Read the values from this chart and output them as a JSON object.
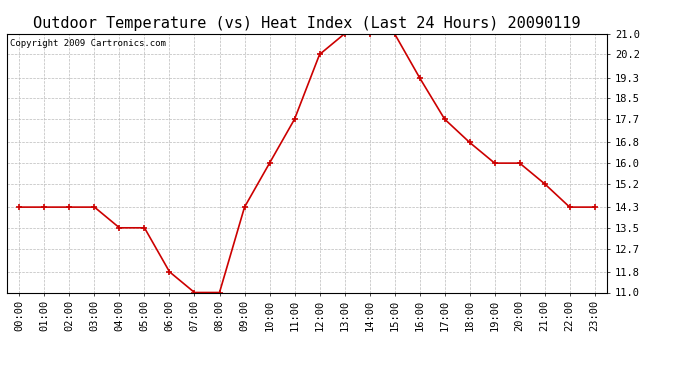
{
  "title": "Outdoor Temperature (vs) Heat Index (Last 24 Hours) 20090119",
  "copyright_text": "Copyright 2009 Cartronics.com",
  "x_labels": [
    "00:00",
    "01:00",
    "02:00",
    "03:00",
    "04:00",
    "05:00",
    "06:00",
    "07:00",
    "08:00",
    "09:00",
    "10:00",
    "11:00",
    "12:00",
    "13:00",
    "14:00",
    "15:00",
    "16:00",
    "17:00",
    "18:00",
    "19:00",
    "20:00",
    "21:00",
    "22:00",
    "23:00"
  ],
  "y_values": [
    14.3,
    14.3,
    14.3,
    14.3,
    13.5,
    13.5,
    11.8,
    11.0,
    11.0,
    14.3,
    16.0,
    17.7,
    20.2,
    21.0,
    21.0,
    21.0,
    19.3,
    17.7,
    16.8,
    16.0,
    16.0,
    15.2,
    14.3,
    14.3
  ],
  "y_ticks": [
    11.0,
    11.8,
    12.7,
    13.5,
    14.3,
    15.2,
    16.0,
    16.8,
    17.7,
    18.5,
    19.3,
    20.2,
    21.0
  ],
  "y_min": 11.0,
  "y_max": 21.0,
  "line_color": "#cc0000",
  "marker_color": "#cc0000",
  "bg_color": "#ffffff",
  "plot_bg_color": "#ffffff",
  "grid_color": "#bbbbbb",
  "title_fontsize": 11,
  "copyright_fontsize": 6.5,
  "tick_fontsize": 7.5
}
